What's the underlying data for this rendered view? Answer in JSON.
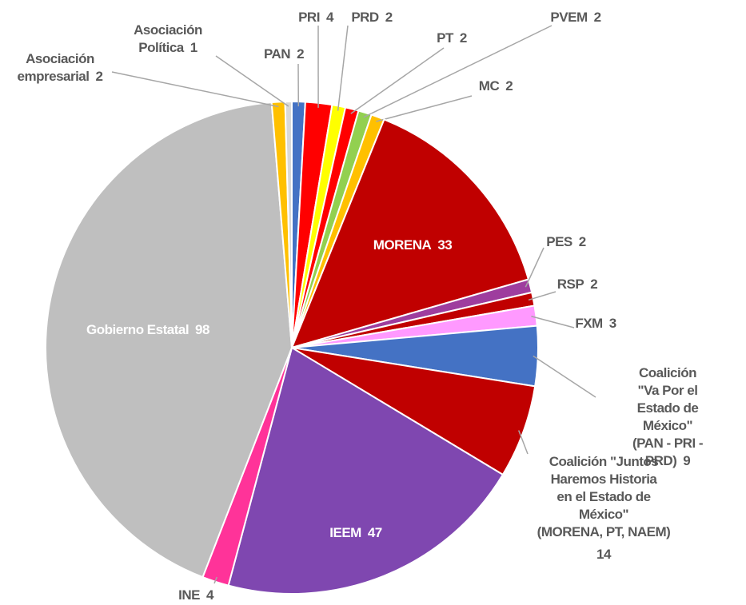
{
  "chart_data": {
    "type": "pie",
    "categories": [
      "PAN",
      "PRI",
      "PRD",
      "PT",
      "PVEM",
      "MC",
      "MORENA",
      "PES",
      "RSP",
      "FXM",
      "Coalición \"Va Por el\nEstado de México\"\n(PAN - PRI - PRD)",
      "Coalición \"Juntos\nHaremos Historia\nen el Estado de\nMéxico\"\n(MORENA, PT, NAEM)",
      "IEEM",
      "INE",
      "Gobierno Estatal",
      "Asociación\nempresarial",
      "Asociación\nPolítica"
    ],
    "values": [
      2,
      4,
      2,
      2,
      2,
      2,
      33,
      2,
      2,
      3,
      9,
      14,
      47,
      4,
      98,
      2,
      1
    ],
    "colors": [
      "#4472c4",
      "#ff0000",
      "#ffff00",
      "#ff0000",
      "#92d050",
      "#ffc000",
      "#c00000",
      "#9e3d9e",
      "#c00000",
      "#ff99ff",
      "#4472c4",
      "#c00000",
      "#7f47b0",
      "#ff3399",
      "#bfbfbf",
      "#ffc000",
      "#d9d9d9"
    ]
  }
}
